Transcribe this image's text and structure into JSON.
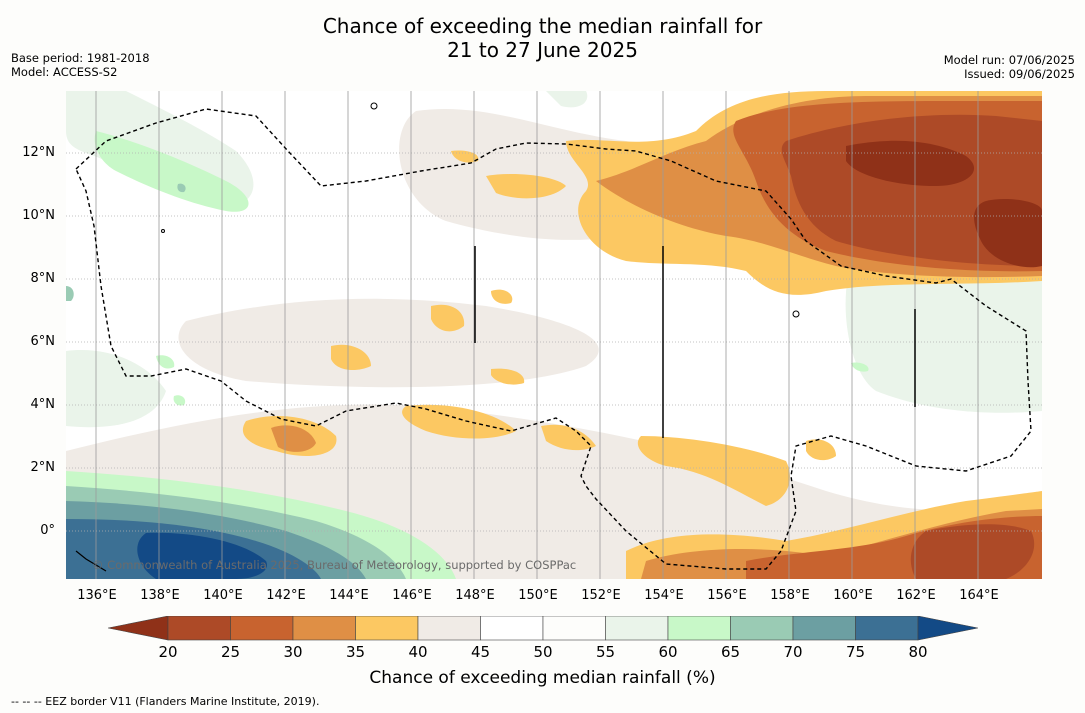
{
  "header": {
    "title_line1": "Chance of exceeding the median rainfall for",
    "title_line2": "21 to 27 June 2025",
    "base_period": "Base period: 1981-2018",
    "model": "Model: ACCESS-S2",
    "model_run": "Model run: 07/06/2025",
    "issued": "Issued: 09/06/2025"
  },
  "map": {
    "credit": "© Commonwealth of Australia 2025, Bureau of Meteorology, supported by COSPPac",
    "lat_labels": [
      "12°N",
      "10°N",
      "8°N",
      "6°N",
      "4°N",
      "2°N",
      "0°"
    ],
    "lon_labels": [
      "136°E",
      "138°E",
      "140°E",
      "142°E",
      "144°E",
      "146°E",
      "148°E",
      "150°E",
      "152°E",
      "154°E",
      "156°E",
      "158°E",
      "160°E",
      "162°E",
      "164°E"
    ]
  },
  "colorbar": {
    "ticks": [
      "20",
      "25",
      "30",
      "35",
      "40",
      "45",
      "50",
      "55",
      "60",
      "65",
      "70",
      "75",
      "80"
    ],
    "colors": [
      "#8f3118",
      "#ad4a27",
      "#c8632f",
      "#df8f45",
      "#fcc862",
      "#f0ebe6",
      "#ffffff",
      "#fdfdfb",
      "#eaf4ea",
      "#c8f8c8",
      "#9acbb4",
      "#6c9fa2",
      "#3c7094",
      "#134a86"
    ],
    "label": "Chance of exceeding median rainfall (%)"
  },
  "footnote": "--  --  -- EEZ border V11 (Flanders Marine Institute, 2019)."
}
